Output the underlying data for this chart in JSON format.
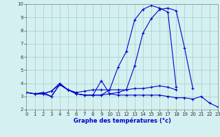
{
  "title": "",
  "xlabel": "Graphe des températures (°c)",
  "ylabel": "",
  "ylim": [
    2,
    10
  ],
  "xlim": [
    0,
    23
  ],
  "background_color": "#d4f0f0",
  "grid_color": "#aacccc",
  "line_color": "#0000cc",
  "x": [
    0,
    1,
    2,
    3,
    4,
    5,
    6,
    7,
    8,
    9,
    10,
    11,
    12,
    13,
    14,
    15,
    16,
    17,
    18,
    19,
    20,
    21,
    22,
    23
  ],
  "line1": [
    3.3,
    3.2,
    3.2,
    3.4,
    3.9,
    3.5,
    3.2,
    3.1,
    3.1,
    4.2,
    3.2,
    3.1,
    3.1,
    3.1,
    3.1,
    3.1,
    3.1,
    3.0,
    2.9,
    2.9,
    2.8,
    3.0,
    2.5,
    2.2
  ],
  "line2": [
    3.3,
    3.2,
    3.2,
    3.4,
    4.0,
    3.5,
    3.3,
    3.4,
    3.5,
    3.5,
    3.5,
    3.5,
    3.5,
    3.6,
    3.6,
    3.7,
    3.8,
    3.7,
    3.5,
    null,
    null,
    null,
    null,
    null
  ],
  "line3": [
    3.3,
    3.2,
    3.2,
    3.0,
    3.9,
    3.5,
    3.2,
    3.1,
    3.1,
    3.1,
    3.2,
    3.3,
    3.5,
    5.3,
    7.8,
    8.9,
    9.6,
    9.7,
    9.5,
    6.7,
    3.6,
    null,
    null,
    null
  ],
  "line4": [
    3.3,
    3.2,
    3.3,
    3.0,
    3.9,
    3.5,
    3.2,
    3.1,
    3.1,
    3.1,
    3.5,
    5.2,
    6.4,
    8.8,
    9.6,
    9.9,
    9.7,
    9.4,
    3.7,
    null,
    null,
    null,
    null,
    null
  ]
}
